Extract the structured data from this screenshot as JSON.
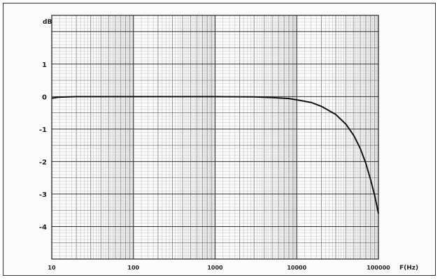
{
  "chart_data": {
    "type": "line",
    "title": "",
    "xlabel": "F(Hz)",
    "ylabel": "dB",
    "x_scale": "log",
    "xlim": [
      10,
      100000
    ],
    "ylim": [
      -5,
      2.5
    ],
    "grid": true,
    "x_ticks": [
      {
        "value": 10,
        "label": "10"
      },
      {
        "value": 100,
        "label": "100"
      },
      {
        "value": 1000,
        "label": "1000"
      },
      {
        "value": 10000,
        "label": "10000"
      },
      {
        "value": 100000,
        "label": "100000"
      }
    ],
    "y_ticks": [
      {
        "value": 1,
        "label": "1"
      },
      {
        "value": 0,
        "label": "0"
      },
      {
        "value": -1,
        "label": "-1"
      },
      {
        "value": -2,
        "label": "-2"
      },
      {
        "value": -3,
        "label": "-3"
      },
      {
        "value": -4,
        "label": "-4"
      }
    ],
    "series": [
      {
        "color": "#111111",
        "points": [
          [
            10,
            -0.05
          ],
          [
            12,
            -0.02
          ],
          [
            20,
            0.0
          ],
          [
            50,
            0.0
          ],
          [
            100,
            0.0
          ],
          [
            300,
            0.0
          ],
          [
            1000,
            0.0
          ],
          [
            3000,
            -0.01
          ],
          [
            5000,
            -0.03
          ],
          [
            8000,
            -0.06
          ],
          [
            10000,
            -0.1
          ],
          [
            15000,
            -0.18
          ],
          [
            20000,
            -0.3
          ],
          [
            30000,
            -0.55
          ],
          [
            40000,
            -0.85
          ],
          [
            50000,
            -1.2
          ],
          [
            60000,
            -1.6
          ],
          [
            70000,
            -2.05
          ],
          [
            80000,
            -2.55
          ],
          [
            90000,
            -3.05
          ],
          [
            100000,
            -3.6
          ]
        ]
      }
    ]
  }
}
